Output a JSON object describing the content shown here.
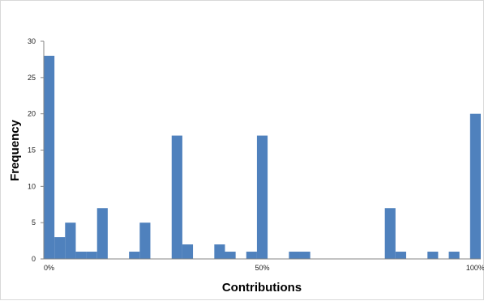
{
  "chart_data": {
    "type": "bar",
    "title": "",
    "xlabel": "Contributions",
    "ylabel": "Frequency",
    "ylim": [
      0,
      30
    ],
    "yticks": [
      0,
      5,
      10,
      15,
      20,
      25,
      30
    ],
    "x_tick_labels": [
      {
        "label": "0%",
        "bin": 0
      },
      {
        "label": "50%",
        "bin": 20
      },
      {
        "label": "100%",
        "bin": 40
      }
    ],
    "categories": [
      "0",
      "1",
      "2",
      "3",
      "4",
      "5",
      "6",
      "7",
      "8",
      "9",
      "10",
      "11",
      "12",
      "13",
      "14",
      "15",
      "16",
      "17",
      "18",
      "19",
      "20",
      "21",
      "22",
      "23",
      "24",
      "25",
      "26",
      "27",
      "28",
      "29",
      "30",
      "31",
      "32",
      "33",
      "34",
      "35",
      "36",
      "37",
      "38",
      "39",
      "40"
    ],
    "values": [
      28,
      3,
      5,
      1,
      1,
      7,
      0,
      0,
      1,
      5,
      0,
      0,
      17,
      2,
      0,
      0,
      2,
      1,
      0,
      1,
      17,
      0,
      0,
      1,
      1,
      0,
      0,
      0,
      0,
      0,
      0,
      0,
      7,
      1,
      0,
      0,
      1,
      0,
      1,
      0,
      20
    ],
    "grid": false,
    "legend": "none",
    "bar_color": "#4f81bd"
  }
}
